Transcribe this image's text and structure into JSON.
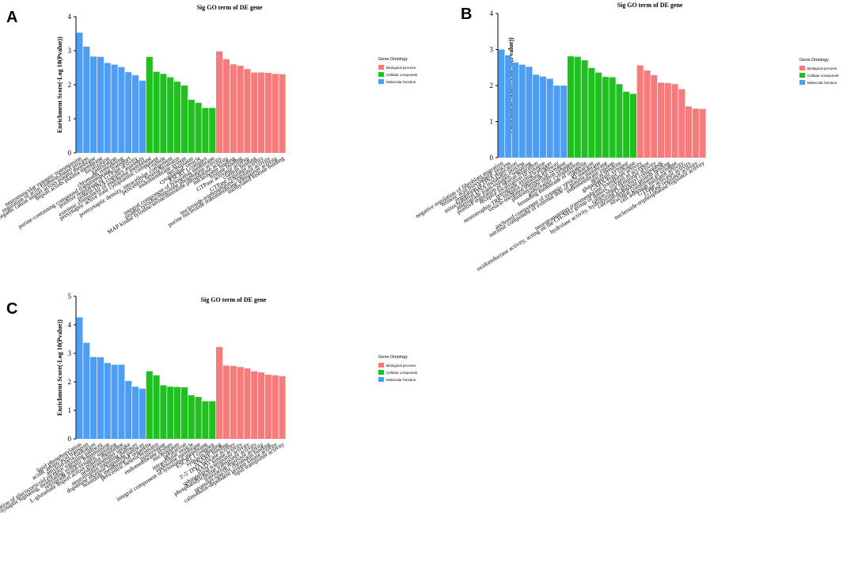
{
  "colors": {
    "Biological process": "#f77b7b",
    "Cellular component": "#1fc01f",
    "Molecular function": "#4d9df5"
  },
  "chart_data": [
    {
      "panel": "A",
      "type": "bar",
      "title": "Sig GO term of DE gene",
      "ylabel": "Enrichment Score(-Log 10(Pvalue))",
      "ylim": [
        0,
        4
      ],
      "yticks": [
        0,
        1,
        2,
        3,
        4
      ],
      "legend": {
        "title": "Gene.Ontology",
        "entries": [
          "Biological process",
          "Cellular component",
          "Molecular function"
        ],
        "position": "right"
      },
      "bars": [
        {
          "label": "neuromuscular synaptic transmission",
          "value": 3.53,
          "category": "Molecular function"
        },
        {
          "label": "regulation of actin filament-based process",
          "value": 3.12,
          "category": "Molecular function"
        },
        {
          "label": "inorganic cation import across plasma membrane",
          "value": 2.83,
          "category": "Molecular function"
        },
        {
          "label": "import across plasma membrane",
          "value": 2.82,
          "category": "Molecular function"
        },
        {
          "label": "localization",
          "value": 2.64,
          "category": "Molecular function"
        },
        {
          "label": "gastrulation",
          "value": 2.59,
          "category": "Molecular function"
        },
        {
          "label": "chromatin remodeling",
          "value": 2.52,
          "category": "Molecular function"
        },
        {
          "label": "purine-containing compound transmembrane transport",
          "value": 2.37,
          "category": "Molecular function"
        },
        {
          "label": "positive regulation of GTPase activity",
          "value": 2.28,
          "category": "Molecular function"
        },
        {
          "label": "protein-DNA complex assembly",
          "value": 2.12,
          "category": "Molecular function"
        },
        {
          "label": "extrinsic component of endosome membrane",
          "value": 2.82,
          "category": "Cellular component"
        },
        {
          "label": "presynaptic active zone cytoplasmic component",
          "value": 2.38,
          "category": "Cellular component"
        },
        {
          "label": "T-tubule",
          "value": 2.32,
          "category": "Cellular component"
        },
        {
          "label": "postsynaptic density, intracellular component",
          "value": 2.22,
          "category": "Cellular component"
        },
        {
          "label": "pericentric heterochromatin",
          "value": 2.09,
          "category": "Cellular component"
        },
        {
          "label": "endomembrane system",
          "value": 1.98,
          "category": "Cellular component"
        },
        {
          "label": "nucleoplasm",
          "value": 1.56,
          "category": "Cellular component"
        },
        {
          "label": "cytoplasmic vesicle",
          "value": 1.47,
          "category": "Cellular component"
        },
        {
          "label": "ESCRT I complex",
          "value": 1.32,
          "category": "Cellular component"
        },
        {
          "label": "integral component of lysosomal membrane",
          "value": 1.32,
          "category": "Cellular component"
        },
        {
          "label": "protein tyrosine/threonine phosphatase activity",
          "value": 2.98,
          "category": "Biological process"
        },
        {
          "label": "MAP kinase tyrosine/serine/threonine phosphatase activity",
          "value": 2.75,
          "category": "Biological process"
        },
        {
          "label": "nucleosome binding",
          "value": 2.6,
          "category": "Biological process"
        },
        {
          "label": "histone binding",
          "value": 2.56,
          "category": "Biological process"
        },
        {
          "label": "GTPase activator activity",
          "value": 2.46,
          "category": "Biological process"
        },
        {
          "label": "clathrin binding",
          "value": 2.36,
          "category": "Biological process"
        },
        {
          "label": "GTPase regulator activity",
          "value": 2.36,
          "category": "Biological process"
        },
        {
          "label": "nucleoside-triphosphatase regulator activity",
          "value": 2.35,
          "category": "Biological process"
        },
        {
          "label": "purine nucleotide transmembrane transporter activity",
          "value": 2.32,
          "category": "Biological process"
        },
        {
          "label": "methylated histone binding",
          "value": 2.31,
          "category": "Biological process"
        }
      ]
    },
    {
      "panel": "B",
      "type": "bar",
      "title": "Sig GO term of DE gene",
      "ylabel": "Enrichment Score(-Log 10(Pvalue))",
      "ylim": [
        0,
        4
      ],
      "yticks": [
        0,
        1,
        2,
        3,
        4
      ],
      "legend": {
        "title": "Gene.Ontology",
        "entries": [
          "Biological process",
          "Cellular component",
          "Molecular function"
        ],
        "position": "right"
      },
      "bars": [
        {
          "label": "negative regulation of fibroblast migration",
          "value": 3.0,
          "category": "Molecular function"
        },
        {
          "label": "retinoic acid biosynthetic process",
          "value": 2.84,
          "category": "Molecular function"
        },
        {
          "label": "regulation of DNA replication",
          "value": 2.64,
          "category": "Molecular function"
        },
        {
          "label": "mitochondrial DNA metabolic process",
          "value": 2.58,
          "category": "Molecular function"
        },
        {
          "label": "anterograde trans-synaptic signaling",
          "value": 2.52,
          "category": "Molecular function"
        },
        {
          "label": "positive regulation of neuron migration",
          "value": 2.3,
          "category": "Molecular function"
        },
        {
          "label": "receptor localization to synapse",
          "value": 2.25,
          "category": "Molecular function"
        },
        {
          "label": "retrograde axonal transport",
          "value": 2.19,
          "category": "Molecular function"
        },
        {
          "label": "neurotrophin TRK receptor signaling pathway",
          "value": 2.0,
          "category": "Molecular function"
        },
        {
          "label": "vesicle-mediated transport in synapse",
          "value": 2.0,
          "category": "Molecular function"
        },
        {
          "label": "photoreceptor ribbon synapse",
          "value": 2.81,
          "category": "Cellular component"
        },
        {
          "label": "presynaptic cytoskeleton",
          "value": 2.8,
          "category": "Cellular component"
        },
        {
          "label": "bounding membrane of organelle",
          "value": 2.7,
          "category": "Cellular component"
        },
        {
          "label": "perikaryon",
          "value": 2.49,
          "category": "Cellular component"
        },
        {
          "label": "anchored component of synaptic vesicle membrane",
          "value": 2.36,
          "category": "Cellular component"
        },
        {
          "label": "intrinsic component of external side of plasma membrane",
          "value": 2.24,
          "category": "Cellular component"
        },
        {
          "label": "endomembrane system",
          "value": 2.23,
          "category": "Cellular component"
        },
        {
          "label": "apical dendrite",
          "value": 2.04,
          "category": "Cellular component"
        },
        {
          "label": "glutamatergic synapse",
          "value": 1.83,
          "category": "Cellular component"
        },
        {
          "label": "GABA-ergic synapse",
          "value": 1.77,
          "category": "Cellular component"
        },
        {
          "label": "neurotransmitter transmembrane transporter activity",
          "value": 2.56,
          "category": "Biological process"
        },
        {
          "label": "oxidoreductase activity, acting on the CH-NH2 group of donors, oxygen as acceptor",
          "value": 2.42,
          "category": "Biological process"
        },
        {
          "label": "cation:sugar symporter activity",
          "value": 2.29,
          "category": "Biological process"
        },
        {
          "label": "hydrolase activity, hydrolyzing O-glycosyl compounds",
          "value": 2.08,
          "category": "Biological process"
        },
        {
          "label": "calcium-dependent protein binding",
          "value": 2.07,
          "category": "Biological process"
        },
        {
          "label": "structural constituent of synapse",
          "value": 2.04,
          "category": "Biological process"
        },
        {
          "label": "cell adhesion mediator activity",
          "value": 1.9,
          "category": "Biological process"
        },
        {
          "label": "GTPase activator activity",
          "value": 1.42,
          "category": "Biological process"
        },
        {
          "label": "GTPase regulator activity",
          "value": 1.36,
          "category": "Biological process"
        },
        {
          "label": "nucleoside-triphosphatase regulator activity",
          "value": 1.35,
          "category": "Biological process"
        }
      ]
    },
    {
      "panel": "C",
      "type": "bar",
      "title": "Sig GO term of DE gene",
      "ylabel": "Enrichment Score(-Log 10(Pvalue))",
      "ylim": [
        0,
        5
      ],
      "yticks": [
        0,
        1,
        2,
        3,
        4,
        5
      ],
      "legend": {
        "title": "Gene.Ontology",
        "entries": [
          "Biological process",
          "Cellular component",
          "Molecular function"
        ],
        "position": "right"
      },
      "bars": [
        {
          "label": "lipid phosphorylation",
          "value": 4.26,
          "category": "Molecular function"
        },
        {
          "label": "acidic amino acid transport",
          "value": 3.37,
          "category": "Molecular function"
        },
        {
          "label": "amyloid-beta formation",
          "value": 2.87,
          "category": "Molecular function"
        },
        {
          "label": "regulation of glucocorticoid receptor signaling pathway",
          "value": 2.86,
          "category": "Molecular function"
        },
        {
          "label": "trans-synaptic signaling, modulating synaptic transmission",
          "value": 2.66,
          "category": "Molecular function"
        },
        {
          "label": "retrograde trans-synaptic signaling",
          "value": 2.6,
          "category": "Molecular function"
        },
        {
          "label": "L-glutamate import across plasma membrane",
          "value": 2.6,
          "category": "Molecular function"
        },
        {
          "label": "neurotransmitter uptake",
          "value": 2.03,
          "category": "Molecular function"
        },
        {
          "label": "neurotrophin signaling pathway",
          "value": 1.83,
          "category": "Molecular function"
        },
        {
          "label": "dopamine receptor signaling pathway",
          "value": 1.76,
          "category": "Molecular function"
        },
        {
          "label": "bounding membrane of organelle",
          "value": 2.37,
          "category": "Cellular component"
        },
        {
          "label": "pericentric heterochromatin",
          "value": 2.23,
          "category": "Cellular component"
        },
        {
          "label": "postsynapse",
          "value": 1.88,
          "category": "Cellular component"
        },
        {
          "label": "endomembrane system",
          "value": 1.83,
          "category": "Cellular component"
        },
        {
          "label": "nucleoplasm",
          "value": 1.82,
          "category": "Cellular component"
        },
        {
          "label": "perikaryon",
          "value": 1.81,
          "category": "Cellular component"
        },
        {
          "label": "intracellular vesicle",
          "value": 1.53,
          "category": "Cellular component"
        },
        {
          "label": "endosome membrane",
          "value": 1.47,
          "category": "Cellular component"
        },
        {
          "label": "integral component of lysosomal membrane",
          "value": 1.32,
          "category": "Cellular component"
        },
        {
          "label": "ESCRT I complex",
          "value": 1.32,
          "category": "Cellular component"
        },
        {
          "label": "syntaxin binding",
          "value": 3.22,
          "category": "Biological process"
        },
        {
          "label": "SNARE binding",
          "value": 2.57,
          "category": "Biological process"
        },
        {
          "label": "3'-5' DNA helicase activity",
          "value": 2.56,
          "category": "Biological process"
        },
        {
          "label": "NAD+ kinase activity",
          "value": 2.52,
          "category": "Biological process"
        },
        {
          "label": "sphingolipid transporter activity",
          "value": 2.47,
          "category": "Biological process"
        },
        {
          "label": "phosphatidylcholine transporter activity",
          "value": 2.37,
          "category": "Biological process"
        },
        {
          "label": "translation repressor activity",
          "value": 2.33,
          "category": "Biological process"
        },
        {
          "label": "promoter-specific chromatin binding",
          "value": 2.25,
          "category": "Biological process"
        },
        {
          "label": "calmodulin-dependent protein kinase activity",
          "value": 2.23,
          "category": "Biological process"
        },
        {
          "label": "lipid transporter activity",
          "value": 2.2,
          "category": "Biological process"
        }
      ]
    }
  ]
}
